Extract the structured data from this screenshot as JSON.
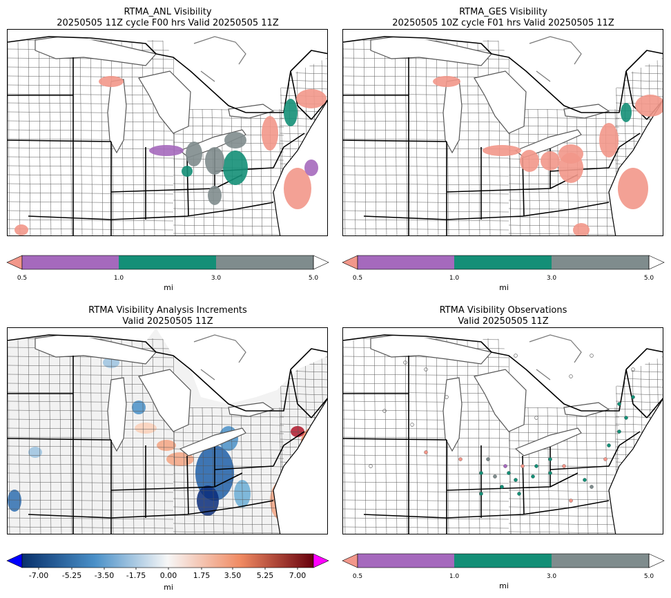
{
  "panels": [
    {
      "title_line1": "RTMA_ANL Visibility",
      "title_line2": "20250505 11Z cycle F00 hrs Valid 20250505 11Z"
    },
    {
      "title_line1": "RTMA_GES Visibility",
      "title_line2": "20250505 10Z cycle F01 hrs Valid 20250505 11Z"
    },
    {
      "title_line1": "RTMA Visibility Analysis Increments",
      "title_line2": "Valid 20250505 11Z"
    },
    {
      "title_line1": "RTMA Visibility Observations",
      "title_line2": "Valid 20250505 11Z"
    }
  ],
  "vis_colorbar": {
    "unit": "mi",
    "ticks": [
      "0.5",
      "1.0",
      "3.0",
      "5.0"
    ],
    "colors": {
      "under": "#f2978a",
      "c1": "#a569bd",
      "c2": "#148f77",
      "c3": "#7f8c8d",
      "over": "#ffffff"
    }
  },
  "inc_colorbar": {
    "unit": "mi",
    "ticks": [
      "-7.00",
      "-5.25",
      "-3.50",
      "-1.75",
      "0.00",
      "1.75",
      "3.50",
      "5.25",
      "7.00"
    ],
    "colors": {
      "under": "#0000ff",
      "low": "#08306b",
      "mid": "#f7f7f7",
      "high": "#67000d",
      "over": "#ff00ff"
    }
  },
  "map_colors": {
    "land": "#ffffff",
    "state_line": "#000000",
    "county_line": "#444444",
    "lake_line": "#555555"
  }
}
